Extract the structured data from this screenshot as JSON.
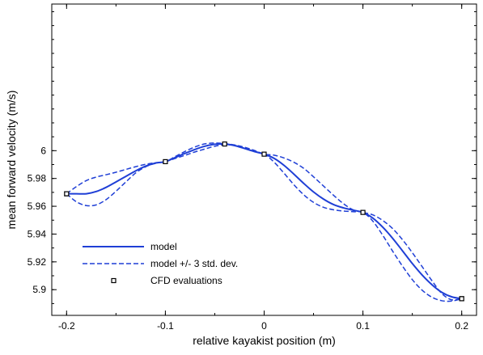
{
  "chart_data": {
    "type": "line",
    "xlabel": "relative kayakist position (m)",
    "ylabel": "mean forward velocity (m/s)",
    "xlim": [
      -0.215,
      0.215
    ],
    "ylim": [
      5.8815,
      6.1055
    ],
    "x_ticks": [
      -0.2,
      -0.1,
      0,
      0.1,
      0.2
    ],
    "x_tick_labels": [
      "-0.2",
      "-0.1",
      "0",
      "0.1",
      "0.2"
    ],
    "y_ticks": [
      5.9,
      5.92,
      5.94,
      5.96,
      5.98,
      6.0
    ],
    "y_tick_labels": [
      "5.9",
      "5.92",
      "5.94",
      "5.96",
      "5.98",
      "6"
    ],
    "grid": false,
    "legend_position": "lower-left",
    "series": [
      {
        "name": "model",
        "style": "solid",
        "color": "#1f3fd6",
        "x": [
          -0.2,
          -0.19,
          -0.18,
          -0.17,
          -0.16,
          -0.15,
          -0.14,
          -0.13,
          -0.12,
          -0.11,
          -0.1,
          -0.09,
          -0.08,
          -0.07,
          -0.06,
          -0.05,
          -0.04,
          -0.03,
          -0.02,
          -0.01,
          0.0,
          0.01,
          0.02,
          0.03,
          0.04,
          0.05,
          0.06,
          0.07,
          0.08,
          0.09,
          0.1,
          0.11,
          0.12,
          0.13,
          0.14,
          0.15,
          0.16,
          0.17,
          0.18,
          0.19,
          0.2
        ],
        "y": [
          5.969,
          5.969,
          5.969,
          5.9706,
          5.9736,
          5.9775,
          5.9815,
          5.9855,
          5.9889,
          5.9911,
          5.9921,
          5.9951,
          5.9981,
          6.0009,
          6.0032,
          6.0046,
          6.0048,
          6.0037,
          6.0016,
          5.9994,
          5.9975,
          5.9945,
          5.9895,
          5.9832,
          5.9765,
          5.9703,
          5.9652,
          5.9613,
          5.9589,
          5.9572,
          5.9556,
          5.9515,
          5.945,
          5.937,
          5.928,
          5.9188,
          5.9105,
          5.9035,
          5.898,
          5.8948,
          5.8935
        ]
      },
      {
        "name": "model +/- 3 std. dev.",
        "style": "dashed",
        "color": "#1f3fd6",
        "x": [
          -0.2,
          -0.19,
          -0.18,
          -0.17,
          -0.16,
          -0.15,
          -0.14,
          -0.13,
          -0.12,
          -0.11,
          -0.1,
          -0.09,
          -0.08,
          -0.07,
          -0.06,
          -0.05,
          -0.04,
          -0.03,
          -0.02,
          -0.01,
          0.0,
          0.01,
          0.02,
          0.03,
          0.04,
          0.05,
          0.06,
          0.07,
          0.08,
          0.09,
          0.1,
          0.11,
          0.12,
          0.13,
          0.14,
          0.15,
          0.16,
          0.17,
          0.18,
          0.19,
          0.2
        ],
        "y": [
          5.969,
          5.9742,
          5.9785,
          5.981,
          5.9827,
          5.9845,
          5.9865,
          5.9885,
          5.9902,
          5.9913,
          5.9921,
          5.9958,
          5.9995,
          6.0027,
          6.0049,
          6.0055,
          6.0051,
          6.0041,
          6.0025,
          6.0002,
          5.9975,
          5.9968,
          5.9948,
          5.9917,
          5.9873,
          5.9812,
          5.9746,
          5.9681,
          5.962,
          5.9575,
          5.9556,
          5.9538,
          5.9498,
          5.944,
          5.936,
          5.9266,
          5.9165,
          5.9063,
          5.8971,
          5.8927,
          5.8935
        ]
      },
      {
        "name": "",
        "style": "dashed",
        "color": "#1f3fd6",
        "x": [
          -0.2,
          -0.19,
          -0.18,
          -0.17,
          -0.16,
          -0.15,
          -0.14,
          -0.13,
          -0.12,
          -0.11,
          -0.1,
          -0.09,
          -0.08,
          -0.07,
          -0.06,
          -0.05,
          -0.04,
          -0.03,
          -0.02,
          -0.01,
          0.0,
          0.01,
          0.02,
          0.03,
          0.04,
          0.05,
          0.06,
          0.07,
          0.08,
          0.09,
          0.1,
          0.11,
          0.12,
          0.13,
          0.14,
          0.15,
          0.16,
          0.17,
          0.18,
          0.19,
          0.2
        ],
        "y": [
          5.969,
          5.9632,
          5.9605,
          5.961,
          5.9648,
          5.9708,
          5.9775,
          5.984,
          5.9884,
          5.9909,
          5.9921,
          5.9944,
          5.9967,
          5.9991,
          6.0012,
          6.0032,
          6.0043,
          6.0038,
          6.0018,
          5.9995,
          5.9975,
          5.9918,
          5.9839,
          5.9756,
          5.9683,
          5.9628,
          5.9593,
          5.9575,
          5.9566,
          5.9561,
          5.9556,
          5.9493,
          5.9392,
          5.9278,
          5.917,
          5.9072,
          5.8996,
          5.8945,
          5.892,
          5.8918,
          5.8935
        ]
      }
    ],
    "cfd_evaluations": {
      "name": "CFD evaluations",
      "x": [
        -0.2,
        -0.1,
        -0.04,
        0.0,
        0.1,
        0.2
      ],
      "y": [
        5.969,
        5.9921,
        6.0048,
        5.9975,
        5.9556,
        5.8935
      ],
      "err": [
        0.0015,
        0.0007,
        0.0005,
        0.0005,
        0.0007,
        0.0015
      ]
    },
    "legend": [
      {
        "label": "model",
        "style": "solid"
      },
      {
        "label": "model +/- 3 std. dev.",
        "style": "dashed"
      },
      {
        "label": "CFD evaluations",
        "style": "marker"
      }
    ]
  }
}
